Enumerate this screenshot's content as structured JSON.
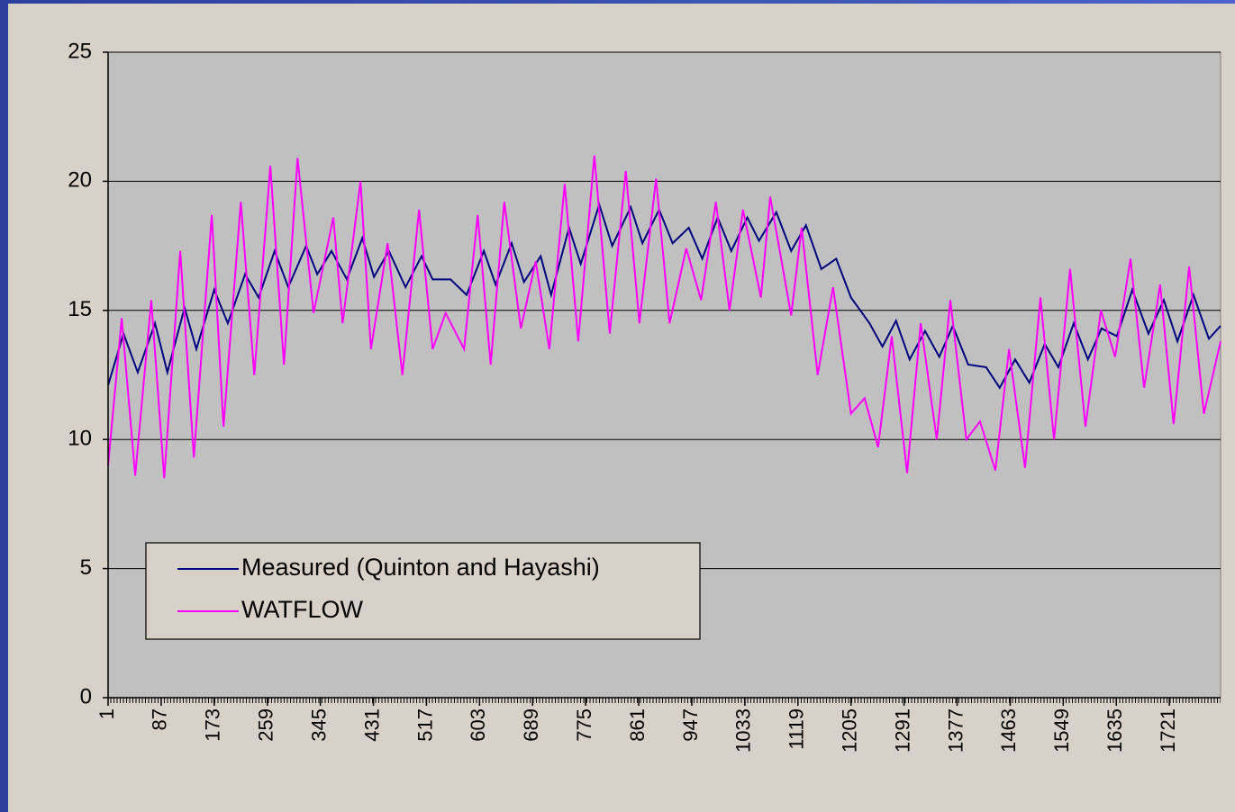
{
  "chart_data": {
    "type": "line",
    "xlim": [
      1,
      1804
    ],
    "xticks": [
      1,
      87,
      173,
      259,
      345,
      431,
      517,
      603,
      689,
      775,
      861,
      947,
      1033,
      1119,
      1205,
      1291,
      1377,
      1463,
      1549,
      1635,
      1721
    ],
    "ylim": [
      0,
      25
    ],
    "yticks": [
      0,
      5,
      10,
      15,
      20,
      25
    ],
    "grid": true,
    "legend": "bottom-left",
    "series": [
      {
        "name": "Measured (Quinton and Hayashi)",
        "color": "#000080",
        "x": [
          1,
          26,
          49,
          77,
          97,
          125,
          144,
          173,
          195,
          223,
          245,
          271,
          293,
          322,
          340,
          363,
          388,
          413,
          432,
          456,
          483,
          509,
          527,
          556,
          582,
          610,
          629,
          655,
          675,
          702,
          719,
          748,
          767,
          797,
          818,
          848,
          867,
          894,
          916,
          942,
          964,
          989,
          1011,
          1037,
          1056,
          1084,
          1108,
          1132,
          1157,
          1181,
          1205,
          1235,
          1256,
          1278,
          1300,
          1325,
          1348,
          1370,
          1395,
          1424,
          1446,
          1471,
          1494,
          1519,
          1541,
          1566,
          1589,
          1611,
          1636,
          1661,
          1687,
          1712,
          1734,
          1760,
          1785,
          1804
        ],
        "values": [
          12.1,
          14.1,
          12.6,
          14.5,
          12.6,
          15.1,
          13.5,
          15.8,
          14.5,
          16.4,
          15.5,
          17.3,
          15.9,
          17.5,
          16.4,
          17.3,
          16.2,
          17.8,
          16.3,
          17.3,
          15.9,
          17.1,
          16.2,
          16.2,
          15.6,
          17.3,
          16.0,
          17.6,
          16.1,
          17.1,
          15.6,
          18.2,
          16.8,
          19.1,
          17.5,
          19.0,
          17.6,
          18.9,
          17.6,
          18.2,
          17.0,
          18.6,
          17.3,
          18.6,
          17.7,
          18.8,
          17.3,
          18.3,
          16.6,
          17.0,
          15.5,
          14.5,
          13.6,
          14.6,
          13.1,
          14.2,
          13.2,
          14.4,
          12.9,
          12.8,
          12.0,
          13.1,
          12.2,
          13.7,
          12.8,
          14.5,
          13.1,
          14.3,
          14.0,
          15.8,
          14.1,
          15.4,
          13.8,
          15.6,
          13.9,
          14.4
        ]
      },
      {
        "name": "WATFLOW",
        "color": "#ff00ff",
        "x": [
          1,
          23,
          45,
          71,
          92,
          118,
          140,
          169,
          188,
          216,
          238,
          264,
          286,
          308,
          334,
          366,
          381,
          410,
          427,
          454,
          478,
          505,
          527,
          548,
          578,
          600,
          621,
          643,
          670,
          694,
          716,
          741,
          763,
          789,
          814,
          840,
          862,
          889,
          911,
          938,
          962,
          986,
          1008,
          1030,
          1059,
          1074,
          1108,
          1125,
          1151,
          1176,
          1205,
          1227,
          1249,
          1271,
          1296,
          1318,
          1344,
          1366,
          1392,
          1414,
          1439,
          1461,
          1487,
          1512,
          1534,
          1560,
          1585,
          1610,
          1633,
          1658,
          1680,
          1706,
          1728,
          1753,
          1777,
          1804
        ],
        "values": [
          9.0,
          14.7,
          8.6,
          15.4,
          8.5,
          17.3,
          9.3,
          18.7,
          10.5,
          19.2,
          12.5,
          20.6,
          12.9,
          20.9,
          14.9,
          18.6,
          14.5,
          20.0,
          13.5,
          17.6,
          12.5,
          18.9,
          13.5,
          14.9,
          13.5,
          18.7,
          12.9,
          19.2,
          14.3,
          16.9,
          13.5,
          19.9,
          13.8,
          21.0,
          14.1,
          20.4,
          14.5,
          20.1,
          14.5,
          17.4,
          15.4,
          19.2,
          15.0,
          18.9,
          15.5,
          19.4,
          14.8,
          18.2,
          12.5,
          15.9,
          11.0,
          11.6,
          9.7,
          14.0,
          8.7,
          14.5,
          10.0,
          15.4,
          10.0,
          10.7,
          8.8,
          13.5,
          8.9,
          15.5,
          10.0,
          16.6,
          10.5,
          15.0,
          13.2,
          17.0,
          12.0,
          16.0,
          10.6,
          16.7,
          11.0,
          13.8
        ]
      }
    ]
  }
}
